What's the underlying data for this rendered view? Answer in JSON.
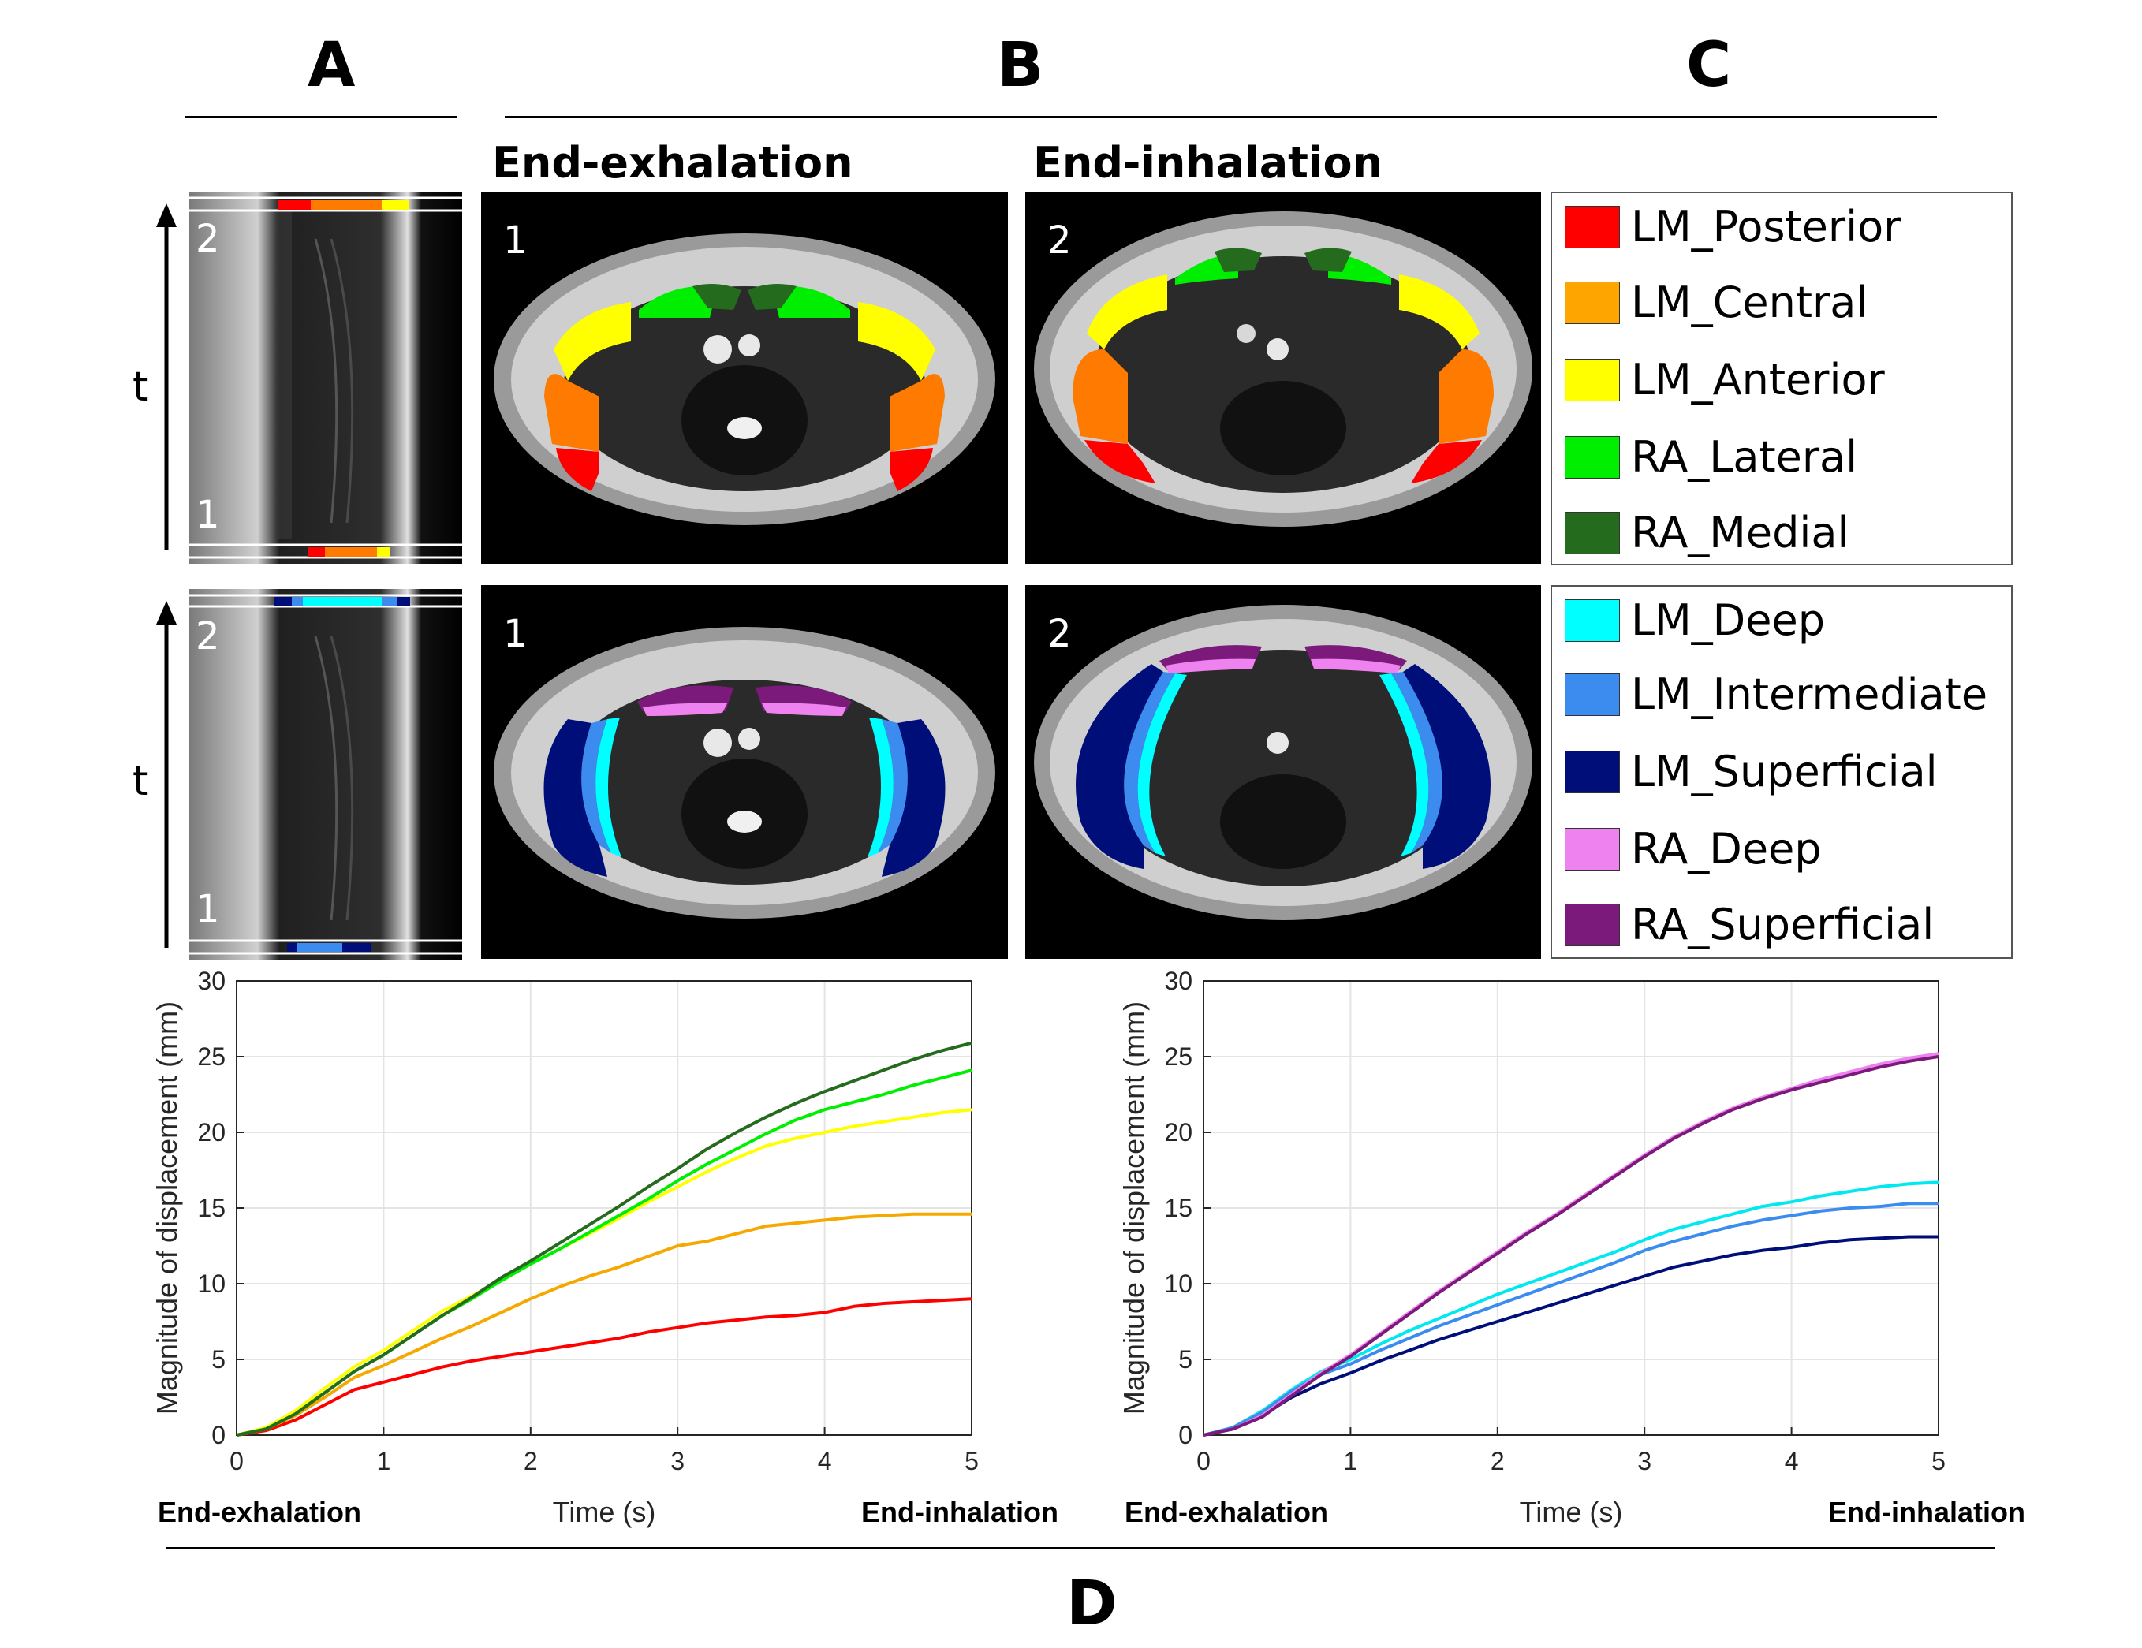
{
  "panels": {
    "a": "A",
    "b": "B",
    "c": "C",
    "d": "D"
  },
  "headers": {
    "exhalation": "End-exhalation",
    "inhalation": "End-inhalation"
  },
  "frames": {
    "one": "1",
    "two": "2"
  },
  "time_axis_label": "t",
  "legend_top": [
    {
      "label": "LM_Posterior",
      "color": "#ff0000"
    },
    {
      "label": "LM_Central",
      "color": "#ffa500"
    },
    {
      "label": "LM_Anterior",
      "color": "#ffff00"
    },
    {
      "label": "RA_Lateral",
      "color": "#00ee00"
    },
    {
      "label": "RA_Medial",
      "color": "#246b1e"
    }
  ],
  "legend_bottom": [
    {
      "label": "LM_Deep",
      "color": "#00ffff"
    },
    {
      "label": "LM_Intermediate",
      "color": "#3c8cf0"
    },
    {
      "label": "LM_Superficial",
      "color": "#000e7a"
    },
    {
      "label": "RA_Deep",
      "color": "#ee82ee"
    },
    {
      "label": "RA_Superficial",
      "color": "#7b1a7b"
    }
  ],
  "chart_data": [
    {
      "type": "line",
      "title": "",
      "xlabel": "Time (s)",
      "ylabel": "Magnitude of displacement (mm)",
      "xlim": [
        0,
        5
      ],
      "ylim": [
        0,
        30
      ],
      "xticks": [
        0,
        1,
        2,
        3,
        4,
        5
      ],
      "yticks": [
        0,
        5,
        10,
        15,
        20,
        25,
        30
      ],
      "grid": true,
      "x_start_label": "End-exhalation",
      "x_end_label": "End-inhalation",
      "x": [
        0,
        0.2,
        0.4,
        0.6,
        0.8,
        1.0,
        1.2,
        1.4,
        1.6,
        1.8,
        2.0,
        2.2,
        2.4,
        2.6,
        2.8,
        3.0,
        3.2,
        3.4,
        3.6,
        3.8,
        4.0,
        4.2,
        4.4,
        4.6,
        4.8,
        5.0
      ],
      "series": [
        {
          "name": "LM_Posterior",
          "color": "#ff0000",
          "values": [
            0,
            0.3,
            1.0,
            2.0,
            3.0,
            3.5,
            4.0,
            4.5,
            4.9,
            5.2,
            5.5,
            5.8,
            6.1,
            6.4,
            6.8,
            7.1,
            7.4,
            7.6,
            7.8,
            7.9,
            8.1,
            8.5,
            8.7,
            8.8,
            8.9,
            9.0
          ]
        },
        {
          "name": "LM_Central",
          "color": "#f5a800",
          "values": [
            0,
            0.4,
            1.3,
            2.5,
            3.8,
            4.6,
            5.5,
            6.4,
            7.2,
            8.1,
            9.0,
            9.8,
            10.5,
            11.1,
            11.8,
            12.5,
            12.8,
            13.3,
            13.8,
            14.0,
            14.2,
            14.4,
            14.5,
            14.6,
            14.6,
            14.6
          ]
        },
        {
          "name": "LM_Anterior",
          "color": "#ffff00",
          "values": [
            0,
            0.5,
            1.6,
            3.1,
            4.5,
            5.6,
            6.9,
            8.2,
            9.2,
            10.2,
            11.3,
            12.3,
            13.3,
            14.3,
            15.4,
            16.4,
            17.4,
            18.3,
            19.1,
            19.6,
            20.0,
            20.4,
            20.7,
            21.0,
            21.3,
            21.5
          ]
        },
        {
          "name": "RA_Lateral",
          "color": "#00ee00",
          "values": [
            0,
            0.4,
            1.4,
            2.8,
            4.2,
            5.3,
            6.6,
            7.9,
            9.0,
            10.2,
            11.3,
            12.3,
            13.4,
            14.5,
            15.6,
            16.8,
            17.9,
            18.9,
            19.9,
            20.8,
            21.5,
            22.0,
            22.5,
            23.1,
            23.6,
            24.1
          ]
        },
        {
          "name": "RA_Medial",
          "color": "#246b1e",
          "values": [
            0,
            0.4,
            1.4,
            2.8,
            4.2,
            5.3,
            6.6,
            7.9,
            9.1,
            10.4,
            11.5,
            12.7,
            13.9,
            15.1,
            16.4,
            17.6,
            18.9,
            20.0,
            21.0,
            21.9,
            22.7,
            23.4,
            24.1,
            24.8,
            25.4,
            25.9
          ]
        }
      ]
    },
    {
      "type": "line",
      "title": "",
      "xlabel": "Time (s)",
      "ylabel": "Magnitude of displacement (mm)",
      "xlim": [
        0,
        5
      ],
      "ylim": [
        0,
        30
      ],
      "xticks": [
        0,
        1,
        2,
        3,
        4,
        5
      ],
      "yticks": [
        0,
        5,
        10,
        15,
        20,
        25,
        30
      ],
      "grid": true,
      "x_start_label": "End-exhalation",
      "x_end_label": "End-inhalation",
      "x": [
        0,
        0.2,
        0.4,
        0.6,
        0.8,
        1.0,
        1.2,
        1.4,
        1.6,
        1.8,
        2.0,
        2.2,
        2.4,
        2.6,
        2.8,
        3.0,
        3.2,
        3.4,
        3.6,
        3.8,
        4.0,
        4.2,
        4.4,
        4.6,
        4.8,
        5.0
      ],
      "series": [
        {
          "name": "LM_Deep",
          "color": "#00e8f0",
          "values": [
            0,
            0.5,
            1.6,
            3.0,
            4.2,
            5.0,
            6.0,
            6.9,
            7.7,
            8.5,
            9.3,
            10.0,
            10.7,
            11.4,
            12.1,
            12.9,
            13.6,
            14.1,
            14.6,
            15.1,
            15.4,
            15.8,
            16.1,
            16.4,
            16.6,
            16.7
          ]
        },
        {
          "name": "LM_Intermediate",
          "color": "#3c8cf0",
          "values": [
            0,
            0.5,
            1.5,
            2.9,
            4.0,
            4.7,
            5.6,
            6.4,
            7.2,
            7.9,
            8.6,
            9.3,
            10.0,
            10.7,
            11.4,
            12.2,
            12.8,
            13.3,
            13.8,
            14.2,
            14.5,
            14.8,
            15.0,
            15.1,
            15.3,
            15.3
          ]
        },
        {
          "name": "LM_Superficial",
          "color": "#000e7a",
          "values": [
            0,
            0.4,
            1.3,
            2.5,
            3.4,
            4.1,
            4.9,
            5.6,
            6.3,
            6.9,
            7.5,
            8.1,
            8.7,
            9.3,
            9.9,
            10.5,
            11.1,
            11.5,
            11.9,
            12.2,
            12.4,
            12.7,
            12.9,
            13.0,
            13.1,
            13.1
          ]
        },
        {
          "name": "RA_Deep",
          "color": "#ee82ee",
          "values": [
            0,
            0.4,
            1.3,
            2.7,
            4.1,
            5.3,
            6.7,
            8.1,
            9.5,
            10.8,
            12.1,
            13.4,
            14.6,
            15.9,
            17.2,
            18.5,
            19.7,
            20.7,
            21.6,
            22.3,
            22.9,
            23.5,
            24.0,
            24.5,
            24.9,
            25.2
          ]
        },
        {
          "name": "RA_Superficial",
          "color": "#7b1a7b",
          "values": [
            0,
            0.4,
            1.2,
            2.6,
            4.0,
            5.2,
            6.6,
            8.0,
            9.4,
            10.7,
            12.0,
            13.3,
            14.5,
            15.8,
            17.1,
            18.4,
            19.6,
            20.6,
            21.5,
            22.2,
            22.8,
            23.3,
            23.8,
            24.3,
            24.7,
            25.0
          ]
        }
      ]
    }
  ]
}
